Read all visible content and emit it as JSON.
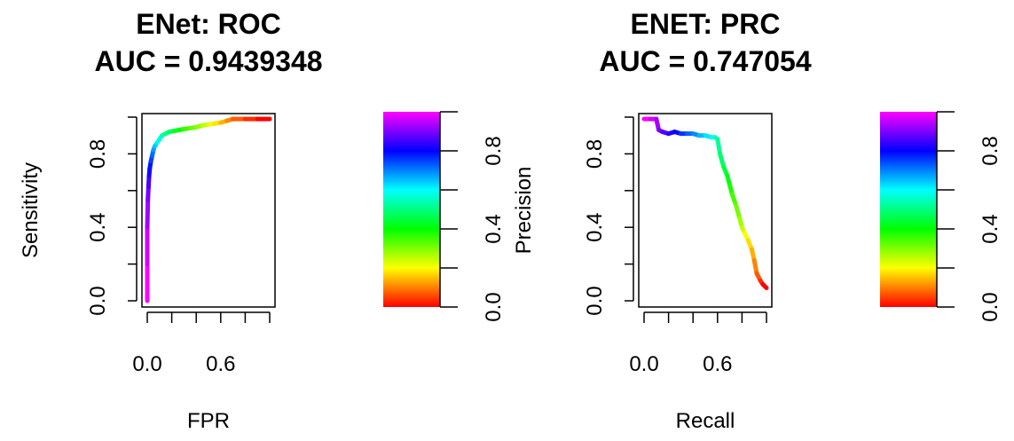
{
  "chart_data": [
    {
      "type": "line",
      "title_line1": "ENet: ROC",
      "title_line2": "AUC = 0.9439348",
      "xlabel": "FPR",
      "ylabel": "Sensitivity",
      "xlim": [
        0,
        1
      ],
      "ylim": [
        0,
        1
      ],
      "xticks": [
        0,
        0.2,
        0.4,
        0.6,
        0.8,
        1.0
      ],
      "xtick_labels": [
        "0.0",
        "",
        "",
        "0.6",
        "",
        ""
      ],
      "yticks": [
        0.0,
        0.2,
        0.4,
        0.6,
        0.8,
        1.0
      ],
      "ytick_labels": [
        "0.0",
        "",
        "0.4",
        "",
        "0.8",
        ""
      ],
      "color_by": "threshold",
      "series": [
        {
          "x": [
            0.0,
            0.0,
            0.0,
            0.005,
            0.01,
            0.015,
            0.02,
            0.03,
            0.04,
            0.05,
            0.06,
            0.08,
            0.1,
            0.12,
            0.15,
            0.18,
            0.22,
            0.26,
            0.3,
            0.35,
            0.4,
            0.45,
            0.5,
            0.55,
            0.6,
            0.65,
            0.7,
            0.8,
            0.9,
            1.0
          ],
          "y": [
            0.0,
            0.2,
            0.4,
            0.55,
            0.62,
            0.68,
            0.72,
            0.76,
            0.79,
            0.82,
            0.84,
            0.86,
            0.88,
            0.9,
            0.91,
            0.92,
            0.925,
            0.93,
            0.935,
            0.94,
            0.945,
            0.955,
            0.96,
            0.965,
            0.97,
            0.98,
            0.99,
            0.99,
            0.99,
            0.99
          ]
        }
      ],
      "colorbar": {
        "ticks": [
          0.0,
          0.2,
          0.4,
          0.6,
          0.8,
          1.0
        ],
        "tick_labels": [
          "0.0",
          "",
          "0.4",
          "",
          "0.8",
          ""
        ],
        "colors": [
          "#ff0000",
          "#ff8000",
          "#ffff00",
          "#80ff00",
          "#00ff00",
          "#00ff80",
          "#00ffff",
          "#0080ff",
          "#0000ff",
          "#8000ff",
          "#ff00ff"
        ]
      }
    },
    {
      "type": "line",
      "title_line1": "ENET: PRC",
      "title_line2": "AUC = 0.747054",
      "xlabel": "Recall",
      "ylabel": "Precision",
      "xlim": [
        0,
        1
      ],
      "ylim": [
        0,
        1
      ],
      "xticks": [
        0,
        0.2,
        0.4,
        0.6,
        0.8,
        1.0
      ],
      "xtick_labels": [
        "0.0",
        "",
        "",
        "0.6",
        "",
        ""
      ],
      "yticks": [
        0.0,
        0.2,
        0.4,
        0.6,
        0.8,
        1.0
      ],
      "ytick_labels": [
        "0.0",
        "",
        "0.4",
        "",
        "0.8",
        ""
      ],
      "color_by": "threshold",
      "series": [
        {
          "x": [
            0.0,
            0.05,
            0.1,
            0.12,
            0.15,
            0.2,
            0.25,
            0.3,
            0.35,
            0.4,
            0.45,
            0.5,
            0.55,
            0.58,
            0.6,
            0.62,
            0.65,
            0.68,
            0.7,
            0.72,
            0.75,
            0.78,
            0.8,
            0.82,
            0.85,
            0.88,
            0.9,
            0.92,
            0.95,
            0.97,
            1.0
          ],
          "y": [
            0.99,
            0.99,
            0.99,
            0.93,
            0.92,
            0.91,
            0.92,
            0.91,
            0.91,
            0.91,
            0.9,
            0.9,
            0.89,
            0.89,
            0.88,
            0.8,
            0.73,
            0.68,
            0.63,
            0.58,
            0.52,
            0.45,
            0.4,
            0.37,
            0.33,
            0.28,
            0.22,
            0.15,
            0.11,
            0.09,
            0.07
          ]
        }
      ],
      "colorbar": {
        "ticks": [
          0.0,
          0.2,
          0.4,
          0.6,
          0.8,
          1.0
        ],
        "tick_labels": [
          "0.0",
          "",
          "0.4",
          "",
          "0.8",
          ""
        ],
        "colors": [
          "#ff0000",
          "#ff8000",
          "#ffff00",
          "#80ff00",
          "#00ff00",
          "#00ff80",
          "#00ffff",
          "#0080ff",
          "#0000ff",
          "#8000ff",
          "#ff00ff"
        ]
      }
    }
  ]
}
